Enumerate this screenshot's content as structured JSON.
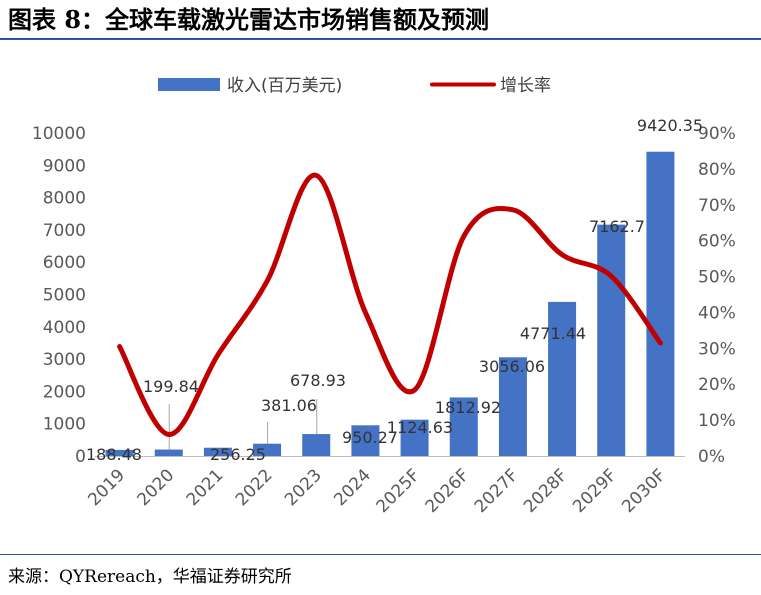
{
  "header": {
    "title": "图表 8：全球车载激光雷达市场销售额及预测"
  },
  "footer": {
    "source": "来源：QYRereach，华福证券研究所"
  },
  "chart_data": {
    "type": "bar",
    "categories": [
      "2019",
      "2020",
      "2021",
      "2022",
      "2023",
      "2024",
      "2025F",
      "2026F",
      "2027F",
      "2028F",
      "2029F",
      "2030F"
    ],
    "series": [
      {
        "name": "收入(百万美元)",
        "type": "bar",
        "axis": "left",
        "color": "#4472c4",
        "values": [
          188.48,
          199.84,
          256.25,
          381.06,
          678.93,
          950.27,
          1124.63,
          1812.92,
          3056.06,
          4771.44,
          7162.7,
          9420.35
        ],
        "labels": [
          "188.48",
          "199.84",
          "256.25",
          "381.06",
          "678.93",
          "950.27",
          "1124.63",
          "1812.92",
          "3056.06",
          "4771.44",
          "7162.7",
          "9420.35"
        ]
      },
      {
        "name": "增长率",
        "type": "line",
        "axis": "right",
        "color": "#c00000",
        "values": [
          30.5,
          6.0,
          28.2,
          48.7,
          78.2,
          40.0,
          18.4,
          61.2,
          68.6,
          56.1,
          50.1,
          31.5
        ]
      }
    ],
    "y_left": {
      "min": 0,
      "max": 10000,
      "ticks": [
        0,
        1000,
        2000,
        3000,
        4000,
        5000,
        6000,
        7000,
        8000,
        9000,
        10000
      ]
    },
    "y_right": {
      "min": 0,
      "max": 90,
      "ticks": [
        "0%",
        "10%",
        "20%",
        "30%",
        "40%",
        "50%",
        "60%",
        "70%",
        "80%",
        "90%"
      ]
    },
    "legend": "top",
    "grid": false
  }
}
